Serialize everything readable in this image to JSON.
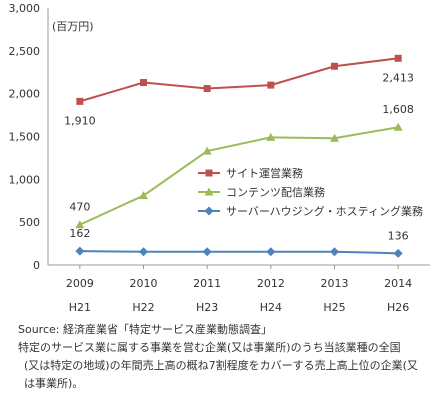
{
  "chart_data": {
    "type": "line",
    "unit_label": "(百万円)",
    "categories": [
      "2009",
      "2010",
      "2011",
      "2012",
      "2013",
      "2014"
    ],
    "categories_secondary": [
      "H21",
      "H22",
      "H23",
      "H24",
      "H25",
      "H26"
    ],
    "y_ticks": [
      "0",
      "500",
      "1,000",
      "1,500",
      "2,000",
      "2,500",
      "3,000"
    ],
    "ylim": [
      0,
      3000
    ],
    "grid": false,
    "legend_position": "center-right",
    "series": [
      {
        "name": "サイト運営業務",
        "color": "#c0504d",
        "marker": "square",
        "values": [
          1910,
          2130,
          2060,
          2100,
          2320,
          2413
        ],
        "point_labels": [
          {
            "index": 0,
            "text": "1,910",
            "pos": "below"
          },
          {
            "index": 5,
            "text": "2,413",
            "pos": "below"
          }
        ]
      },
      {
        "name": "コンテンツ配信業務",
        "color": "#9bbb59",
        "marker": "triangle",
        "values": [
          470,
          810,
          1330,
          1490,
          1480,
          1608
        ],
        "point_labels": [
          {
            "index": 0,
            "text": "470",
            "pos": "above"
          },
          {
            "index": 5,
            "text": "1,608",
            "pos": "above"
          }
        ]
      },
      {
        "name": "サーバーハウジング・ホスティング業務",
        "color": "#4f81bd",
        "marker": "diamond",
        "values": [
          162,
          155,
          155,
          155,
          155,
          136
        ],
        "point_labels": [
          {
            "index": 0,
            "text": "162",
            "pos": "above"
          },
          {
            "index": 5,
            "text": "136",
            "pos": "above"
          }
        ]
      }
    ]
  },
  "notes": {
    "source": "Source: 経済産業省「特定サービス産業動態調査」",
    "line1": "特定のサービス業に属する事業を営む企業(又は事業所)のうち当該業種の全国",
    "line2": "(又は特定の地域)の年間売上高の概ね7割程度をカバーする売上高上位の企業(又",
    "line3": "は事業所)。"
  }
}
